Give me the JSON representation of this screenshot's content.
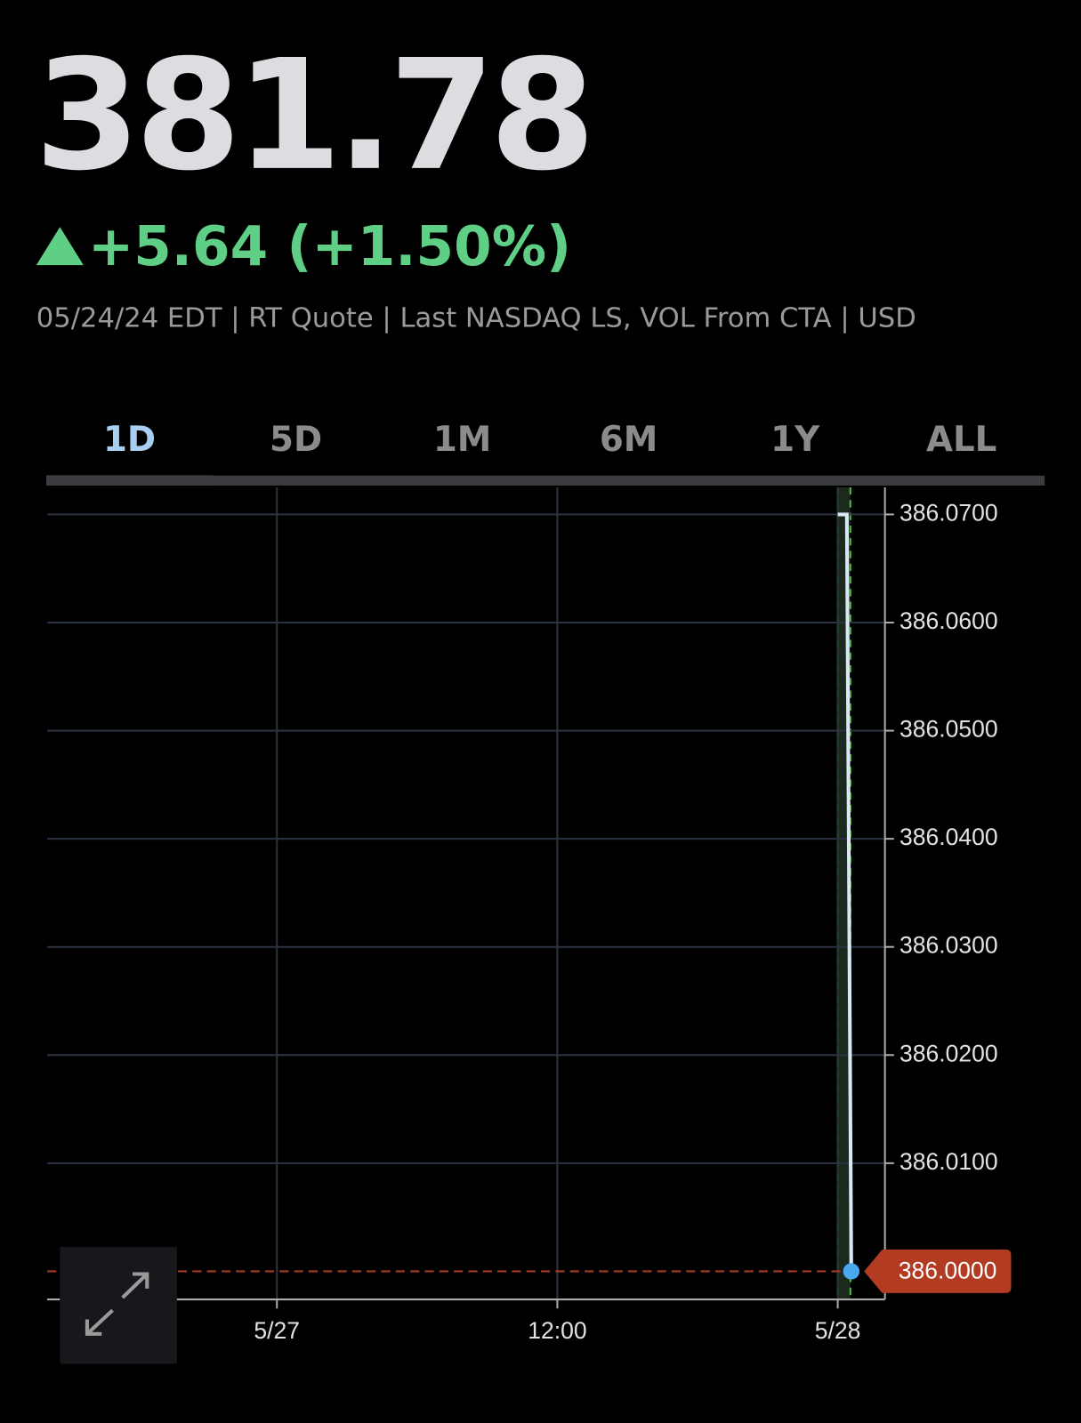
{
  "quote": {
    "price": "381.78",
    "change": "+5.64 (+1.50%)",
    "meta": "05/24/24 EDT | RT Quote | Last NASDAQ LS, VOL From CTA | USD"
  },
  "tabs": {
    "items": [
      "1D",
      "5D",
      "1M",
      "6M",
      "1Y",
      "ALL"
    ],
    "active": 0
  },
  "chart_data": {
    "type": "line",
    "x": [
      24.0,
      24.39,
      24.58
    ],
    "series": [
      {
        "color": "#d9e8f7",
        "values": [
          386.07,
          386.07,
          386.0
        ],
        "value_labels": [
          null,
          null,
          "386.0000"
        ]
      }
    ],
    "xlim": [
      -9.83,
      26.02
    ],
    "xticks": [
      {
        "value": 0,
        "label": "5/27"
      },
      {
        "value": 12,
        "label": "12:00"
      },
      {
        "value": 24,
        "label": "5/28"
      }
    ],
    "ylim": [
      385.9974,
      386.0725
    ],
    "yticks": [
      {
        "value": 386.01,
        "label": "386.0100"
      },
      {
        "value": 386.02,
        "label": "386.0200"
      },
      {
        "value": 386.03,
        "label": "386.0300"
      },
      {
        "value": 386.04,
        "label": "386.0400"
      },
      {
        "value": 386.05,
        "label": "386.0500"
      },
      {
        "value": 386.06,
        "label": "386.0600"
      },
      {
        "value": 386.07,
        "label": "386.0700"
      }
    ],
    "highlight_x": [
      24.0,
      24.54
    ],
    "grid": true
  }
}
